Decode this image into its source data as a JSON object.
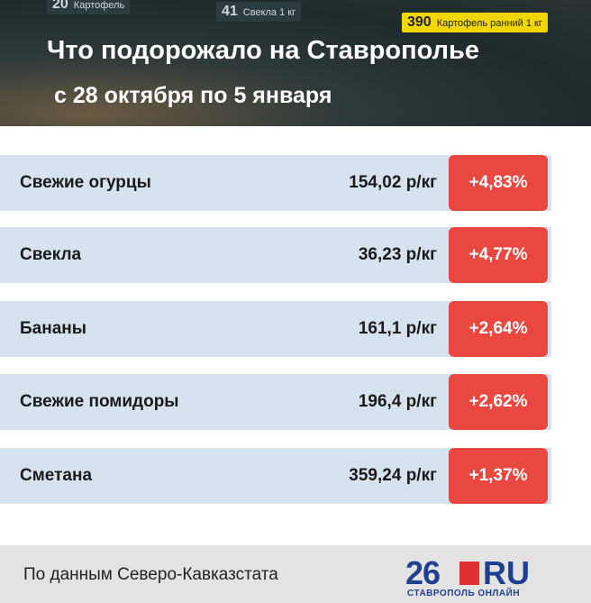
{
  "header": {
    "title": "Что подорожало на Ставрополье",
    "subtitle": "с 28 октября по 5 января",
    "photo_tags": [
      {
        "number": "20",
        "label": "Картофель"
      },
      {
        "number": "41",
        "label": "Свекла 1 кг"
      },
      {
        "number": "390",
        "label": "Картофель ранний 1 кг"
      }
    ]
  },
  "table": {
    "rows": [
      [
        "Свежие огурцы",
        "154,02 р/кг",
        "+4,83%"
      ],
      [
        "Свекла",
        "36,23 р/кг",
        "+4,77%"
      ],
      [
        "Бананы",
        "161,1 р/кг",
        "+2,64%"
      ],
      [
        "Свежие помидоры",
        "196,4 р/кг",
        "+2,62%"
      ],
      [
        "Сметана",
        "359,24 р/кг",
        "+1,37%"
      ]
    ]
  },
  "footer": {
    "source": "По данным Северо-Кавказстата",
    "logo": {
      "number": "26",
      "domain": "RU",
      "tagline": "СТАВРОПОЛЬ ОНЛАЙН"
    }
  }
}
